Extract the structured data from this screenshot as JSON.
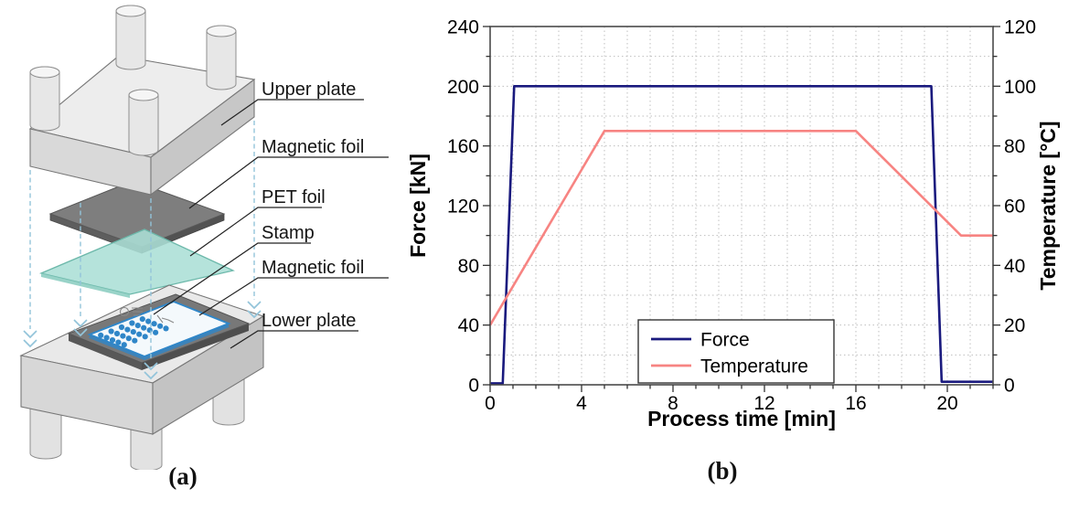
{
  "figure": {
    "panel_a": {
      "caption": "(a)",
      "labels": {
        "upper_plate": "Upper plate",
        "magnetic_foil_top": "Magnetic foil",
        "pet_foil": "PET foil",
        "stamp": "Stamp",
        "magnetic_foil_bottom": "Magnetic foil",
        "lower_plate": "Lower plate"
      },
      "stamp_grid": {
        "rows": 5,
        "cols": 5
      },
      "colors": {
        "plate_gray": "#ededed",
        "foil_dark_gray": "#7e7e7e",
        "pet_foil_teal": "#abdfd6",
        "stamp_blue": "#2f86c8",
        "guide_line_blue": "#93c4da"
      }
    },
    "panel_b": {
      "caption": "(b)"
    }
  },
  "chart_data": {
    "type": "line",
    "title": "",
    "xlabel": "Process time [min]",
    "ylabel_left": "Force [kN]",
    "ylabel_right": "Temperature [°C]",
    "xlim": [
      0,
      22
    ],
    "ylim_left": [
      0,
      240
    ],
    "ylim_right": [
      0,
      120
    ],
    "x_major_ticks": [
      0,
      4,
      8,
      12,
      16,
      20
    ],
    "x_minor_step": 1,
    "y_left_major_ticks": [
      0,
      40,
      80,
      120,
      160,
      200,
      240
    ],
    "y_left_minor_step": 20,
    "y_right_major_ticks": [
      0,
      20,
      40,
      60,
      80,
      100,
      120
    ],
    "y_right_minor_step": 10,
    "grid": true,
    "legend_position": "bottom-center",
    "series": [
      {
        "name": "Force",
        "axis": "left",
        "color": "#1a1a7e",
        "points": [
          [
            0,
            1
          ],
          [
            0.55,
            1
          ],
          [
            1.05,
            200
          ],
          [
            19.3,
            200
          ],
          [
            19.75,
            2
          ],
          [
            22,
            2
          ]
        ]
      },
      {
        "name": "Temperature",
        "axis": "right",
        "color": "#f78482",
        "points": [
          [
            0,
            20
          ],
          [
            5,
            85
          ],
          [
            16,
            85
          ],
          [
            20.6,
            50
          ],
          [
            22,
            50
          ]
        ]
      }
    ]
  }
}
